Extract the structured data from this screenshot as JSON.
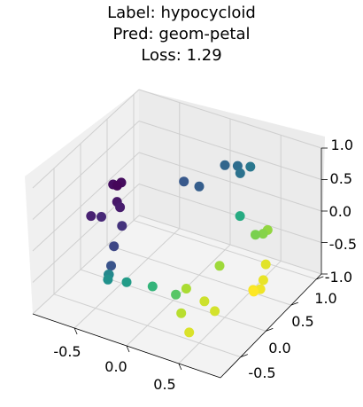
{
  "title_lines": [
    "Label: hypocycloid",
    "Pred: geom-petal",
    "Loss: 1.29"
  ],
  "colors": {
    "pane_left": "#f0f0f0",
    "pane_right": "#ebebeb",
    "pane_floor": "#f3f3f3",
    "grid": "#cfcfcf",
    "colormap": "viridis"
  },
  "chart_data": {
    "type": "scatter3d",
    "colormap": "viridis",
    "grid": true,
    "xlim": [
      -0.9,
      0.9
    ],
    "ylim": [
      -0.9,
      1.1
    ],
    "zlim": [
      -1.0,
      1.0
    ],
    "x_ticks": [
      "-0.5",
      "0.0",
      "0.5"
    ],
    "y_ticks": [
      "-0.5",
      "0.0",
      "0.5",
      "1.0"
    ],
    "z_ticks": [
      "-1.0",
      "-0.5",
      "0.0",
      "0.5",
      "1.0"
    ],
    "x_tick_values": [
      -0.5,
      0.0,
      0.5
    ],
    "y_tick_values": [
      -0.5,
      0.0,
      0.5,
      1.0
    ],
    "z_tick_values": [
      -1.0,
      -0.5,
      0.0,
      0.5,
      1.0
    ],
    "points": [
      {
        "x": -0.75,
        "y": 0.4,
        "z": 0.1,
        "c": 0.02
      },
      {
        "x": -0.72,
        "y": 0.42,
        "z": 0.15,
        "c": 0.04
      },
      {
        "x": -0.78,
        "y": 0.38,
        "z": 0.12,
        "c": 0.05
      },
      {
        "x": -0.7,
        "y": 0.3,
        "z": -0.05,
        "c": 0.08
      },
      {
        "x": -0.66,
        "y": 0.28,
        "z": -0.1,
        "c": 0.1
      },
      {
        "x": -0.85,
        "y": 0.1,
        "z": -0.2,
        "c": 0.12
      },
      {
        "x": -0.76,
        "y": 0.12,
        "z": -0.18,
        "c": 0.14
      },
      {
        "x": -0.6,
        "y": 0.2,
        "z": -0.3,
        "c": 0.17
      },
      {
        "x": -0.55,
        "y": -0.05,
        "z": -0.4,
        "c": 0.22
      },
      {
        "x": -0.4,
        "y": -0.4,
        "z": -0.35,
        "c": 0.26
      },
      {
        "x": -0.2,
        "y": 0.6,
        "z": 0.3,
        "c": 0.28
      },
      {
        "x": -0.05,
        "y": 0.6,
        "z": 0.3,
        "c": 0.3
      },
      {
        "x": 0.05,
        "y": 0.9,
        "z": 0.45,
        "c": 0.33
      },
      {
        "x": 0.15,
        "y": 0.95,
        "z": 0.45,
        "c": 0.36
      },
      {
        "x": 0.2,
        "y": 0.9,
        "z": 0.4,
        "c": 0.38
      },
      {
        "x": 0.25,
        "y": 1.0,
        "z": 0.45,
        "c": 0.4
      },
      {
        "x": -0.4,
        "y": -0.45,
        "z": -0.45,
        "c": 0.46
      },
      {
        "x": -0.42,
        "y": -0.4,
        "z": -0.5,
        "c": 0.48
      },
      {
        "x": -0.38,
        "y": -0.5,
        "z": -0.48,
        "c": 0.5
      },
      {
        "x": -0.2,
        "y": -0.5,
        "z": -0.42,
        "c": 0.55
      },
      {
        "x": 0.4,
        "y": 0.5,
        "z": 0.15,
        "c": 0.62
      },
      {
        "x": 0.05,
        "y": -0.5,
        "z": -0.35,
        "c": 0.66
      },
      {
        "x": 0.3,
        "y": -0.55,
        "z": -0.3,
        "c": 0.74
      },
      {
        "x": 0.65,
        "y": 0.3,
        "z": 0.15,
        "c": 0.8
      },
      {
        "x": 0.7,
        "y": 0.35,
        "z": 0.15,
        "c": 0.82
      },
      {
        "x": 0.72,
        "y": 0.4,
        "z": 0.18,
        "c": 0.84
      },
      {
        "x": 0.5,
        "y": -0.1,
        "z": -0.1,
        "c": 0.86
      },
      {
        "x": 0.4,
        "y": -0.55,
        "z": -0.15,
        "c": 0.88
      },
      {
        "x": 0.45,
        "y": -0.75,
        "z": -0.35,
        "c": 0.9
      },
      {
        "x": 0.6,
        "y": -0.6,
        "z": -0.2,
        "c": 0.93
      },
      {
        "x": 0.7,
        "y": -0.6,
        "z": -0.3,
        "c": 0.94
      },
      {
        "x": 0.6,
        "y": -0.9,
        "z": -0.45,
        "c": 0.95
      },
      {
        "x": 0.85,
        "y": 0.1,
        "z": -0.05,
        "c": 0.96
      },
      {
        "x": 0.9,
        "y": -0.05,
        "z": -0.15,
        "c": 0.97
      },
      {
        "x": 0.92,
        "y": -0.15,
        "z": -0.2,
        "c": 0.98
      },
      {
        "x": 0.85,
        "y": -0.15,
        "z": -0.25,
        "c": 0.99
      },
      {
        "x": 0.88,
        "y": -0.2,
        "z": -0.22,
        "c": 1.0
      }
    ]
  }
}
